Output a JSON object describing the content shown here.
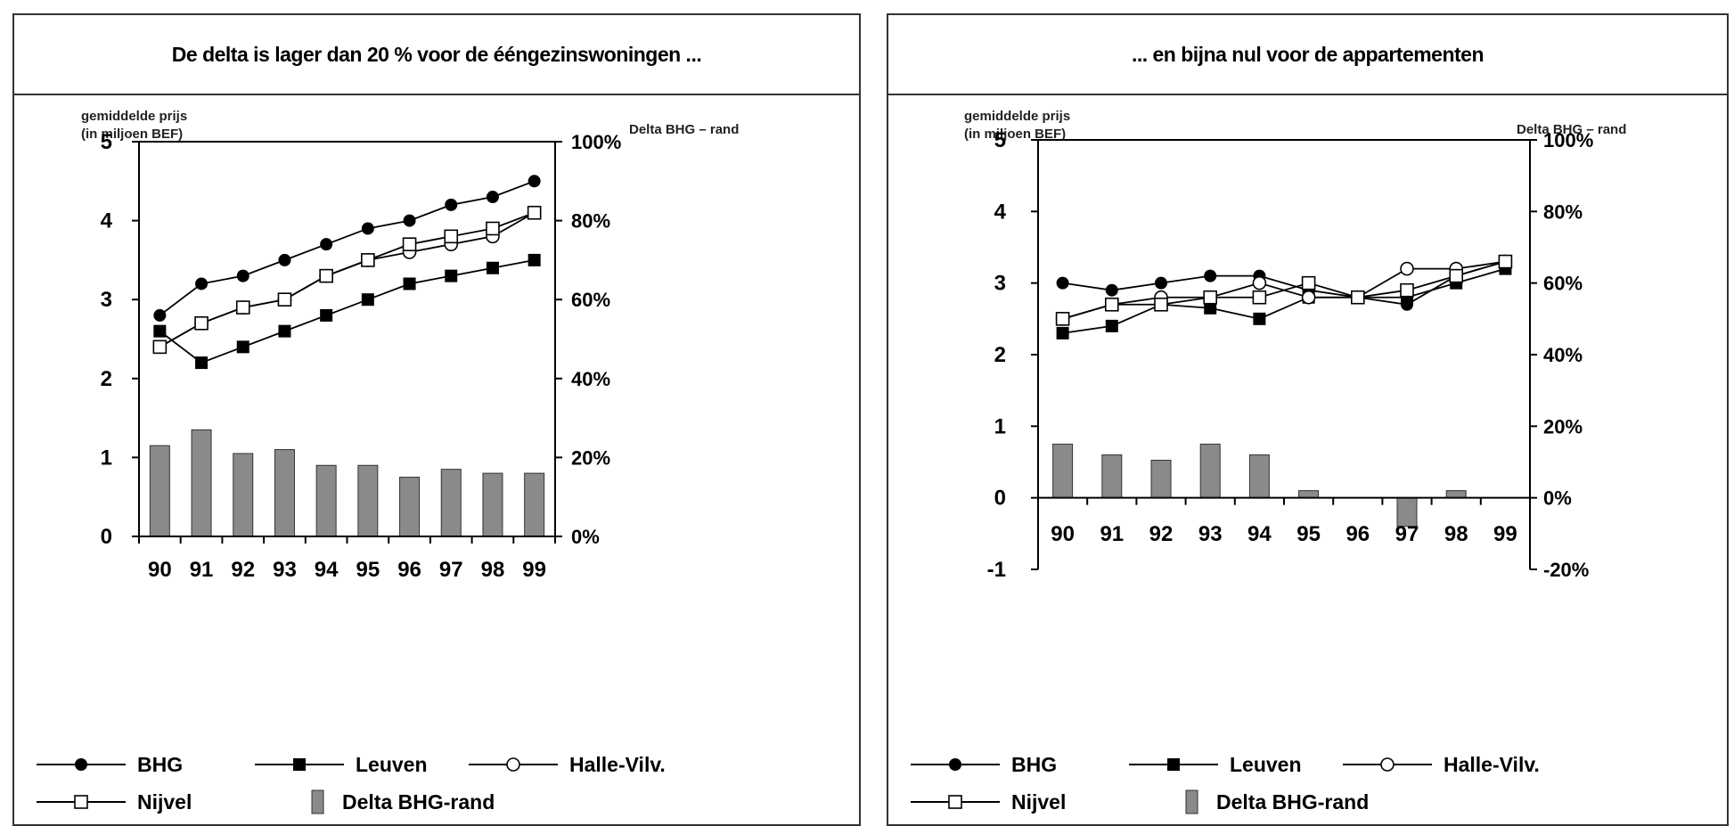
{
  "chart_data": [
    {
      "type": "line",
      "title": "De delta is lager dan 20 % voor de ééngezinswoningen ...",
      "ylabel": "gemiddelde prijs\n(in miljoen BEF)",
      "y2label": "Delta BHG – rand",
      "categories": [
        "90",
        "91",
        "92",
        "93",
        "94",
        "95",
        "96",
        "97",
        "98",
        "99"
      ],
      "ylim": [
        0,
        5
      ],
      "yticks": [
        "0",
        "1",
        "2",
        "3",
        "4",
        "5"
      ],
      "y2lim": [
        0,
        100
      ],
      "y2ticks": [
        "0%",
        "20%",
        "40%",
        "60%",
        "80%",
        "100%"
      ],
      "grid": false,
      "legend_position": "bottom",
      "series": [
        {
          "name": "BHG",
          "marker": "filled-circle",
          "values": [
            2.8,
            3.2,
            3.3,
            3.5,
            3.7,
            3.9,
            4.0,
            4.2,
            4.3,
            4.5
          ]
        },
        {
          "name": "Leuven",
          "marker": "filled-square",
          "values": [
            2.6,
            2.2,
            2.4,
            2.6,
            2.8,
            3.0,
            3.2,
            3.3,
            3.4,
            3.5
          ]
        },
        {
          "name": "Halle-Vilv.",
          "marker": "open-circle",
          "values": [
            2.4,
            2.7,
            2.9,
            3.0,
            3.3,
            3.5,
            3.6,
            3.7,
            3.8,
            4.1
          ]
        },
        {
          "name": "Nijvel",
          "marker": "open-square",
          "values": [
            2.4,
            2.7,
            2.9,
            3.0,
            3.3,
            3.5,
            3.7,
            3.8,
            3.9,
            4.1
          ]
        },
        {
          "name": "Delta BHG-rand",
          "type": "bar",
          "axis": "right",
          "values": [
            23,
            27,
            21,
            22,
            18,
            18,
            15,
            17,
            16,
            16
          ]
        }
      ]
    },
    {
      "type": "line",
      "title": "... en bijna nul voor de appartementen",
      "ylabel": "gemiddelde prijs\n(in miljoen BEF)",
      "y2label": "Delta BHG – rand",
      "categories": [
        "90",
        "91",
        "92",
        "93",
        "94",
        "95",
        "96",
        "97",
        "98",
        "99"
      ],
      "ylim": [
        -1,
        5
      ],
      "yticks": [
        "-1",
        "0",
        "1",
        "2",
        "3",
        "4",
        "5"
      ],
      "y2lim": [
        -20,
        100
      ],
      "y2ticks": [
        "-20%",
        "0%",
        "20%",
        "40%",
        "60%",
        "80%",
        "100%"
      ],
      "grid": false,
      "legend_position": "bottom",
      "series": [
        {
          "name": "BHG",
          "marker": "filled-circle",
          "values": [
            3.0,
            2.9,
            3.0,
            3.1,
            3.1,
            2.9,
            2.8,
            2.7,
            3.1,
            3.3
          ]
        },
        {
          "name": "Leuven",
          "marker": "filled-square",
          "values": [
            2.3,
            2.4,
            2.7,
            2.65,
            2.5,
            2.8,
            2.8,
            2.8,
            3.0,
            3.2
          ]
        },
        {
          "name": "Halle-Vilv.",
          "marker": "open-circle",
          "values": [
            2.5,
            2.7,
            2.8,
            2.8,
            3.0,
            2.8,
            2.8,
            3.2,
            3.2,
            3.3
          ]
        },
        {
          "name": "Nijvel",
          "marker": "open-square",
          "values": [
            2.5,
            2.7,
            2.7,
            2.8,
            2.8,
            3.0,
            2.8,
            2.9,
            3.1,
            3.3
          ]
        },
        {
          "name": "Delta BHG-rand",
          "type": "bar",
          "axis": "right",
          "values": [
            15,
            12,
            10.5,
            15,
            12,
            2,
            0,
            -8,
            2,
            0
          ]
        }
      ]
    }
  ]
}
